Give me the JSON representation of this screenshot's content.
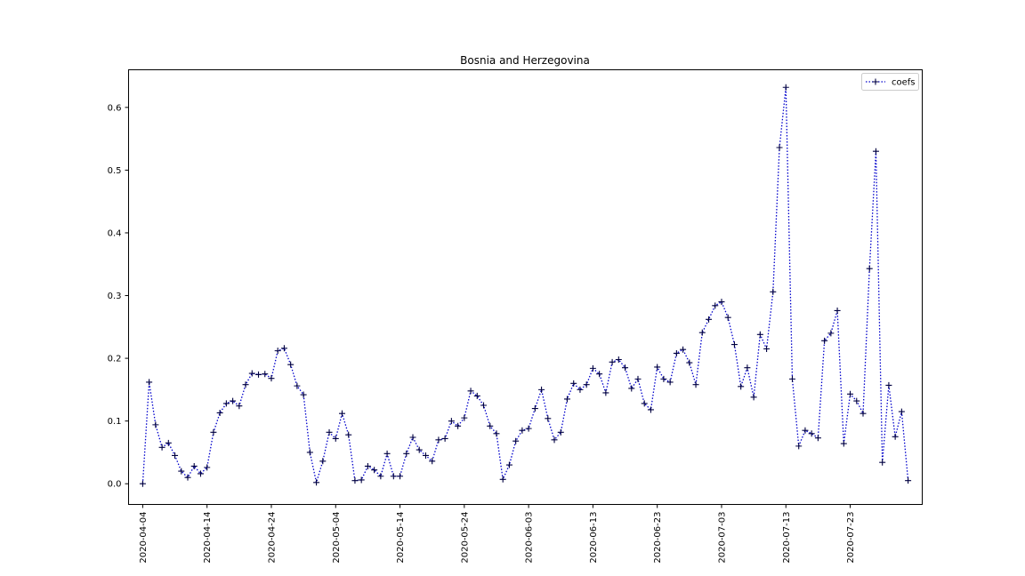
{
  "chart_data": {
    "type": "line",
    "title": "Bosnia and Herzegovina",
    "xlabel": "",
    "ylabel": "",
    "x_start": "2020-04-04",
    "x_tick_labels": [
      "2020-04-04",
      "2020-04-14",
      "2020-04-24",
      "2020-05-04",
      "2020-05-14",
      "2020-05-24",
      "2020-06-03",
      "2020-06-13",
      "2020-06-23",
      "2020-07-03",
      "2020-07-13",
      "2020-07-23"
    ],
    "y_tick_labels": [
      "0.0",
      "0.1",
      "0.2",
      "0.3",
      "0.4",
      "0.5",
      "0.6"
    ],
    "ylim": [
      -0.033,
      0.66
    ],
    "grid": false,
    "legend_position": "upper right",
    "series": [
      {
        "name": "coefs",
        "color": "#0000cc",
        "line_style": "dotted",
        "marker": "plus",
        "values": [
          0.0,
          0.162,
          0.094,
          0.058,
          0.065,
          0.045,
          0.02,
          0.01,
          0.028,
          0.016,
          0.026,
          0.082,
          0.113,
          0.128,
          0.132,
          0.124,
          0.158,
          0.176,
          0.174,
          0.175,
          0.168,
          0.212,
          0.216,
          0.19,
          0.156,
          0.142,
          0.05,
          0.002,
          0.036,
          0.082,
          0.072,
          0.112,
          0.078,
          0.005,
          0.006,
          0.028,
          0.022,
          0.012,
          0.048,
          0.012,
          0.012,
          0.048,
          0.074,
          0.054,
          0.045,
          0.036,
          0.07,
          0.072,
          0.1,
          0.092,
          0.105,
          0.148,
          0.14,
          0.125,
          0.092,
          0.08,
          0.007,
          0.03,
          0.068,
          0.085,
          0.088,
          0.12,
          0.15,
          0.104,
          0.07,
          0.082,
          0.135,
          0.16,
          0.15,
          0.158,
          0.184,
          0.175,
          0.145,
          0.194,
          0.198,
          0.185,
          0.152,
          0.167,
          0.128,
          0.118,
          0.186,
          0.167,
          0.162,
          0.208,
          0.214,
          0.193,
          0.158,
          0.241,
          0.262,
          0.284,
          0.29,
          0.265,
          0.222,
          0.155,
          0.185,
          0.138,
          0.238,
          0.215,
          0.306,
          0.536,
          0.632,
          0.167,
          0.06,
          0.085,
          0.08,
          0.073,
          0.228,
          0.24,
          0.276,
          0.064,
          0.143,
          0.132,
          0.112,
          0.343,
          0.53,
          0.034,
          0.157,
          0.075,
          0.115,
          0.005
        ]
      }
    ]
  }
}
